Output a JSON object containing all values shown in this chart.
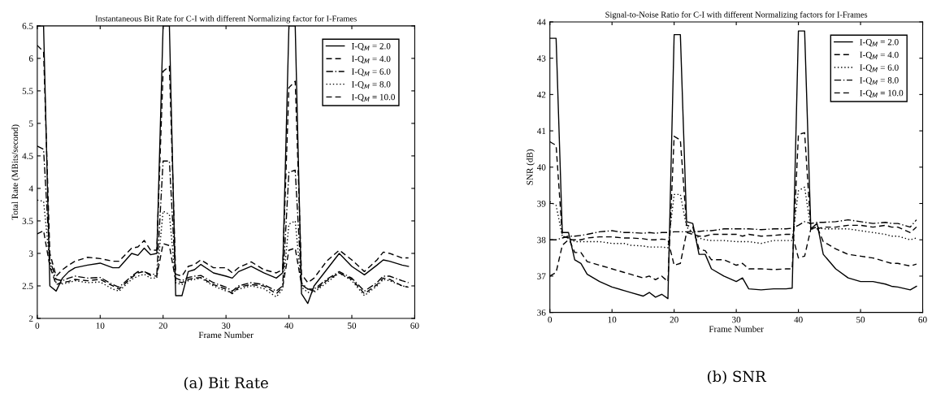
{
  "chart_data": [
    {
      "type": "line",
      "title": "Instantaneous Bit Rate for C-I with different Normalizing factor for I-Frames",
      "xlabel": "Frame Number",
      "ylabel": "Total Rate (MBits/second)",
      "annotations": [
        "(a) Bit Rate"
      ],
      "x": [
        0,
        1,
        2,
        3,
        4,
        5,
        6,
        8,
        10,
        12,
        13,
        15,
        16,
        17,
        18,
        19,
        20,
        21,
        22,
        23,
        24,
        25,
        26,
        28,
        30,
        31,
        32,
        34,
        36,
        38,
        39,
        40,
        41,
        42,
        43,
        44,
        46,
        48,
        50,
        52,
        54,
        55,
        56,
        58,
        59
      ],
      "xlim": [
        0,
        60
      ],
      "xticks": [
        0,
        10,
        20,
        30,
        40,
        50,
        60
      ],
      "ylim": [
        2,
        6.5
      ],
      "yticks": [
        2,
        2.5,
        3,
        3.5,
        4,
        4.5,
        5,
        5.5,
        6,
        6.5
      ],
      "grid": false,
      "legend": "top right",
      "series": [
        {
          "name": "I-Q$_{M}$ = 2.0",
          "color": "#000000",
          "line_style": "solid",
          "values": [
            6.5,
            6.5,
            2.5,
            2.42,
            2.62,
            2.72,
            2.78,
            2.82,
            2.85,
            2.78,
            2.78,
            3.0,
            2.97,
            3.08,
            2.98,
            3.0,
            6.5,
            6.5,
            2.35,
            2.35,
            2.72,
            2.75,
            2.83,
            2.7,
            2.65,
            2.62,
            2.72,
            2.8,
            2.7,
            2.62,
            2.7,
            6.5,
            6.5,
            2.38,
            2.23,
            2.5,
            2.75,
            3.0,
            2.8,
            2.67,
            2.82,
            2.9,
            2.88,
            2.82,
            2.8
          ]
        },
        {
          "name": "I-Q$_{M}$ = 4.0",
          "color": "#000000",
          "line_style": "dashed",
          "values": [
            6.2,
            6.1,
            3.0,
            2.65,
            2.75,
            2.82,
            2.88,
            2.94,
            2.92,
            2.88,
            2.88,
            3.08,
            3.1,
            3.2,
            3.05,
            3.05,
            5.8,
            5.88,
            2.68,
            2.65,
            2.8,
            2.83,
            2.9,
            2.78,
            2.78,
            2.7,
            2.78,
            2.87,
            2.75,
            2.7,
            2.75,
            5.55,
            5.65,
            2.68,
            2.55,
            2.62,
            2.88,
            3.05,
            2.9,
            2.72,
            2.9,
            3.02,
            3.0,
            2.93,
            2.93
          ]
        },
        {
          "name": "I-Q$_{M}$ = 6.0",
          "color": "#000000",
          "line_style": "dashdot",
          "values": [
            4.65,
            4.6,
            2.9,
            2.6,
            2.58,
            2.62,
            2.65,
            2.62,
            2.63,
            2.52,
            2.48,
            2.65,
            2.72,
            2.72,
            2.68,
            2.68,
            4.42,
            4.42,
            2.62,
            2.58,
            2.63,
            2.65,
            2.66,
            2.55,
            2.48,
            2.42,
            2.5,
            2.55,
            2.52,
            2.42,
            2.5,
            4.25,
            4.28,
            2.55,
            2.45,
            2.45,
            2.6,
            2.72,
            2.62,
            2.42,
            2.55,
            2.65,
            2.65,
            2.58,
            2.55
          ]
        },
        {
          "name": "I-Q$_{M}$ = 8.0",
          "color": "#000000",
          "line_style": "dotted",
          "values": [
            3.82,
            3.8,
            2.85,
            2.55,
            2.53,
            2.55,
            2.58,
            2.55,
            2.56,
            2.45,
            2.42,
            2.6,
            2.65,
            2.68,
            2.62,
            2.62,
            3.65,
            3.6,
            2.55,
            2.52,
            2.58,
            2.6,
            2.62,
            2.5,
            2.42,
            2.4,
            2.45,
            2.5,
            2.46,
            2.33,
            2.45,
            3.45,
            3.5,
            2.48,
            2.4,
            2.4,
            2.55,
            2.7,
            2.58,
            2.35,
            2.5,
            2.6,
            2.58,
            2.5,
            2.48
          ]
        },
        {
          "name": "I-Q$_{M}$ = 10.0",
          "color": "#000000",
          "line_style": "dashed",
          "values": [
            3.3,
            3.35,
            2.8,
            2.52,
            2.55,
            2.57,
            2.6,
            2.58,
            2.6,
            2.5,
            2.45,
            2.63,
            2.7,
            2.72,
            2.66,
            2.65,
            3.15,
            3.12,
            2.58,
            2.55,
            2.6,
            2.62,
            2.63,
            2.52,
            2.45,
            2.38,
            2.48,
            2.52,
            2.5,
            2.38,
            2.48,
            3.05,
            3.08,
            2.52,
            2.45,
            2.42,
            2.58,
            2.7,
            2.6,
            2.38,
            2.52,
            2.62,
            2.6,
            2.5,
            2.48
          ]
        }
      ]
    },
    {
      "type": "line",
      "title": "Signal-to-Noise Ratio for C-I with different Normalizing factors for I-Frames",
      "xlabel": "Frame Number",
      "ylabel": "SNR (dB)",
      "annotations": [
        "(b) SNR"
      ],
      "x": [
        0,
        1,
        2,
        3,
        4,
        5,
        6,
        8,
        10,
        12,
        13,
        15,
        16,
        17,
        18,
        19,
        20,
        21,
        22,
        23,
        24,
        25,
        26,
        28,
        30,
        31,
        32,
        34,
        36,
        38,
        39,
        40,
        41,
        42,
        43,
        44,
        46,
        48,
        50,
        52,
        54,
        55,
        56,
        58,
        59
      ],
      "xlim": [
        0,
        60
      ],
      "xticks": [
        0,
        10,
        20,
        30,
        40,
        50,
        60
      ],
      "ylim": [
        36,
        44
      ],
      "yticks": [
        36,
        37,
        38,
        39,
        40,
        41,
        42,
        43,
        44
      ],
      "grid": false,
      "legend": "top right",
      "series": [
        {
          "name": "I-Q$_{M}$ = 2.0",
          "color": "#000000",
          "line_style": "solid",
          "values": [
            43.55,
            43.55,
            38.2,
            38.2,
            37.45,
            37.35,
            37.05,
            36.85,
            36.7,
            36.6,
            36.55,
            36.45,
            36.55,
            36.42,
            36.5,
            36.38,
            43.65,
            43.65,
            38.5,
            38.45,
            37.6,
            37.6,
            37.2,
            37.0,
            36.85,
            36.95,
            36.65,
            36.62,
            36.65,
            36.65,
            36.67,
            43.75,
            43.75,
            38.3,
            38.45,
            37.6,
            37.2,
            36.95,
            36.85,
            36.85,
            36.78,
            36.72,
            36.7,
            36.62,
            36.72
          ]
        },
        {
          "name": "I-Q$_{M}$ = 4.0",
          "color": "#000000",
          "line_style": "dashed",
          "values": [
            40.7,
            40.6,
            38.1,
            38.05,
            37.65,
            37.65,
            37.4,
            37.3,
            37.2,
            37.1,
            37.05,
            36.95,
            37.0,
            36.9,
            37.0,
            36.85,
            40.85,
            40.75,
            38.4,
            38.35,
            37.75,
            37.7,
            37.45,
            37.45,
            37.3,
            37.35,
            37.2,
            37.2,
            37.18,
            37.2,
            37.2,
            40.9,
            40.95,
            38.3,
            38.35,
            37.95,
            37.75,
            37.6,
            37.55,
            37.5,
            37.4,
            37.35,
            37.35,
            37.28,
            37.33
          ]
        },
        {
          "name": "I-Q$_{M}$ = 6.0",
          "color": "#000000",
          "line_style": "dotted",
          "values": [
            39.05,
            38.95,
            38.1,
            38.05,
            37.95,
            37.95,
            37.95,
            37.95,
            37.9,
            37.9,
            37.85,
            37.83,
            37.8,
            37.8,
            37.8,
            37.78,
            39.25,
            39.25,
            38.35,
            38.2,
            38.05,
            38.0,
            37.98,
            37.98,
            37.95,
            37.95,
            37.95,
            37.9,
            37.98,
            37.98,
            37.98,
            39.35,
            39.45,
            38.3,
            38.35,
            38.3,
            38.3,
            38.3,
            38.25,
            38.2,
            38.15,
            38.1,
            38.1,
            38.0,
            38.05
          ]
        },
        {
          "name": "I-Q$_{M}$ = 8.0",
          "color": "#000000",
          "line_style": "dashdot",
          "values": [
            38.0,
            38.0,
            38.05,
            38.1,
            38.1,
            38.12,
            38.15,
            38.22,
            38.25,
            38.2,
            38.2,
            38.18,
            38.2,
            38.18,
            38.2,
            38.2,
            38.22,
            38.22,
            38.22,
            38.23,
            38.23,
            38.25,
            38.25,
            38.3,
            38.3,
            38.3,
            38.3,
            38.28,
            38.3,
            38.3,
            38.32,
            38.4,
            38.5,
            38.45,
            38.48,
            38.48,
            38.5,
            38.55,
            38.5,
            38.45,
            38.48,
            38.45,
            38.45,
            38.35,
            38.55
          ]
        },
        {
          "name": "I-Q$_{M}$ = 10.0",
          "color": "#000000",
          "line_style": "dashed",
          "values": [
            37.0,
            37.1,
            37.85,
            38.0,
            38.0,
            38.0,
            38.05,
            38.08,
            38.08,
            38.05,
            38.05,
            38.03,
            38.0,
            38.0,
            38.02,
            38.0,
            37.3,
            37.35,
            38.2,
            38.15,
            38.1,
            38.1,
            38.15,
            38.15,
            38.15,
            38.1,
            38.15,
            38.1,
            38.12,
            38.15,
            38.15,
            37.5,
            37.55,
            38.3,
            38.3,
            38.35,
            38.35,
            38.4,
            38.4,
            38.35,
            38.4,
            38.35,
            38.35,
            38.2,
            38.35
          ]
        }
      ]
    }
  ]
}
